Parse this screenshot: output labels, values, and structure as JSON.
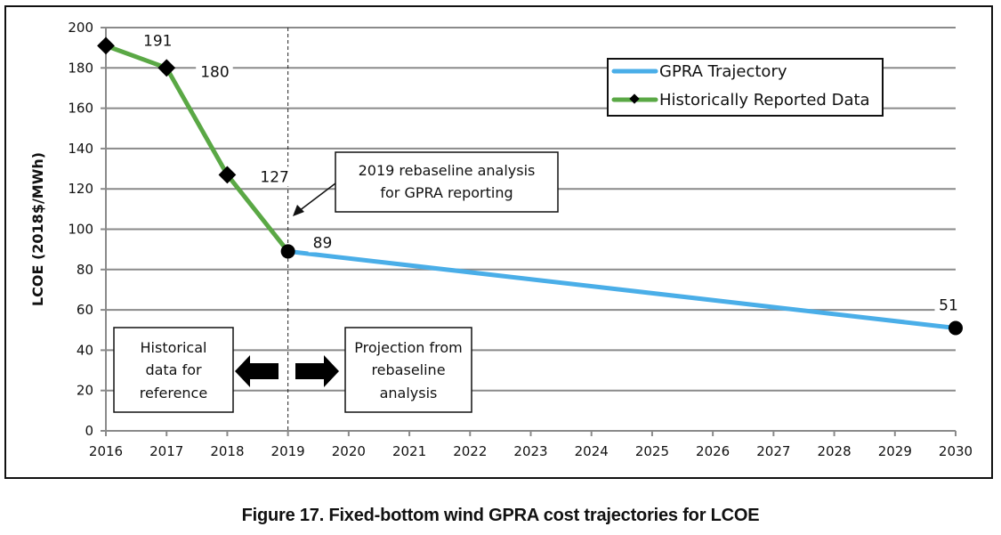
{
  "caption": "Figure 17. Fixed-bottom wind GPRA cost trajectories for LCOE",
  "chart_data": {
    "type": "line",
    "title": "",
    "xlabel": "",
    "ylabel": "LCOE (2018$/MWh)",
    "xlim": [
      2016,
      2030
    ],
    "ylim": [
      0,
      200
    ],
    "x_ticks": [
      2016,
      2017,
      2018,
      2019,
      2020,
      2021,
      2022,
      2023,
      2024,
      2025,
      2026,
      2027,
      2028,
      2029,
      2030
    ],
    "y_ticks": [
      0,
      20,
      40,
      60,
      80,
      100,
      120,
      140,
      160,
      180,
      200
    ],
    "grid": "horizontal",
    "legend": {
      "placement": "top-right",
      "entries": [
        "GPRA Trajectory",
        "Historically Reported Data"
      ]
    },
    "series": [
      {
        "name": "Historically Reported Data",
        "color": "#5aa845",
        "marker": "diamond",
        "x": [
          2016,
          2017,
          2018,
          2019
        ],
        "values": [
          191,
          180,
          127,
          89
        ]
      },
      {
        "name": "GPRA Trajectory",
        "color": "#4aaee8",
        "marker": "none",
        "x": [
          2019,
          2030
        ],
        "values": [
          89,
          51
        ]
      }
    ],
    "data_labels": [
      {
        "x": 2016,
        "y": 191,
        "text": "191"
      },
      {
        "x": 2017,
        "y": 180,
        "text": "180"
      },
      {
        "x": 2018,
        "y": 127,
        "text": "127"
      },
      {
        "x": 2019,
        "y": 89,
        "text": "89"
      },
      {
        "x": 2030,
        "y": 51,
        "text": "51"
      }
    ],
    "endpoint_markers": [
      {
        "x": 2019,
        "y": 89
      },
      {
        "x": 2030,
        "y": 51
      }
    ],
    "divider_year": 2019,
    "annotations": {
      "rebaseline_note": [
        "2019 rebaseline analysis",
        "for GPRA reporting"
      ],
      "historical_note": [
        "Historical",
        "data for",
        "reference"
      ],
      "projection_note": [
        "Projection from",
        "rebaseline",
        "analysis"
      ]
    }
  }
}
